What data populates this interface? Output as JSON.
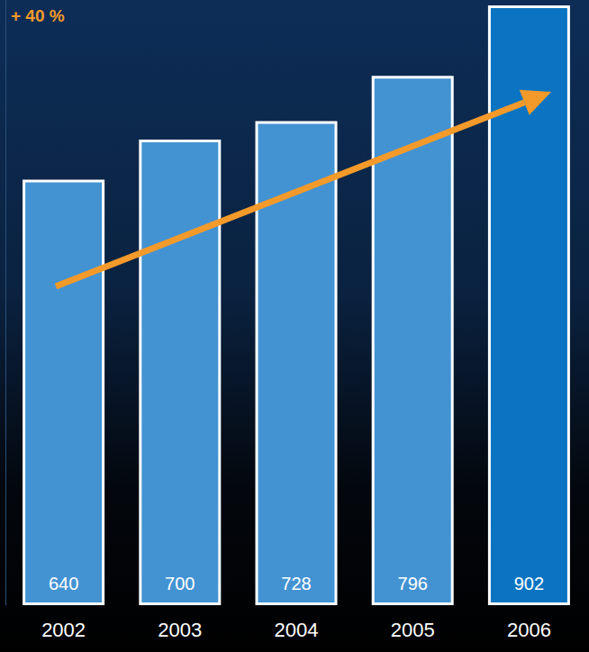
{
  "chart_data": {
    "type": "bar",
    "annotation": "+ 40 %",
    "categories": [
      "2002",
      "2003",
      "2004",
      "2005",
      "2006"
    ],
    "values": [
      640,
      700,
      728,
      796,
      902
    ],
    "colors": [
      "#4393d3",
      "#4393d3",
      "#4393d3",
      "#4393d3",
      "#0a74c2"
    ],
    "ylim": [
      0,
      910
    ],
    "grid": false,
    "data_labels": true,
    "tick_labels": "x"
  }
}
